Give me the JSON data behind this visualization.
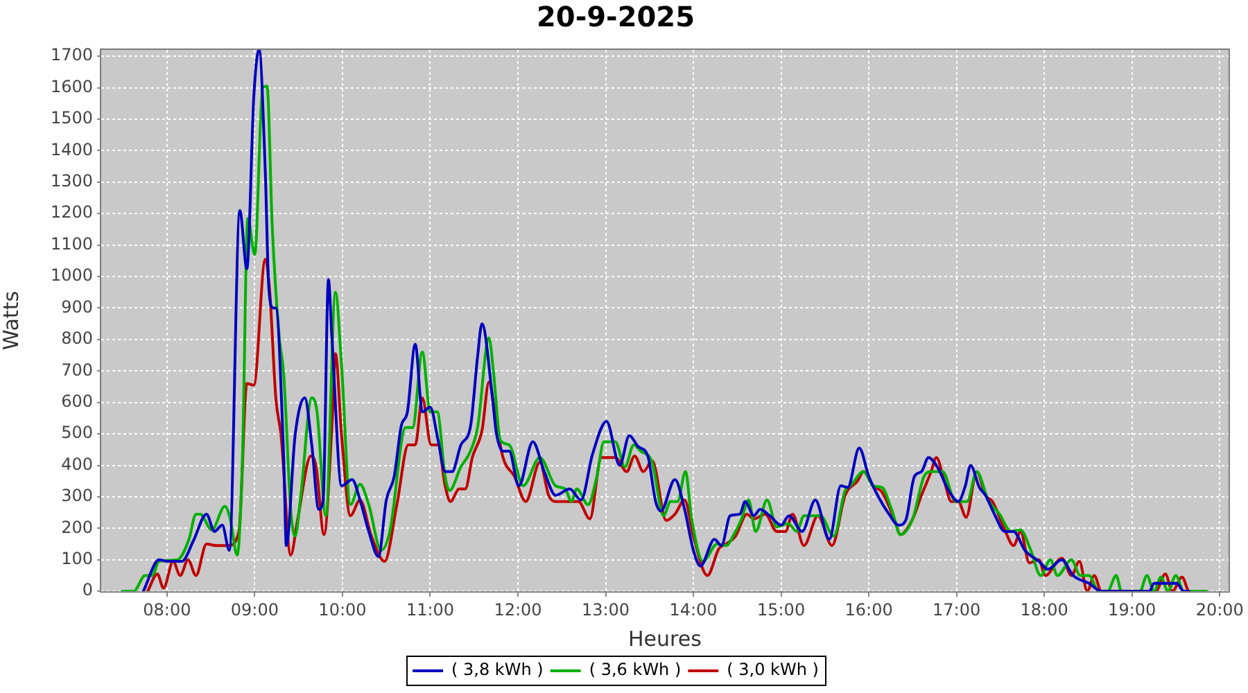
{
  "chart_data": {
    "type": "line",
    "title": "20-9-2025",
    "xlabel": "Heures",
    "ylabel": "Watts",
    "xlim": [
      7.25,
      20.1
    ],
    "ylim": [
      0,
      1720
    ],
    "xticks": [
      {
        "value": 8,
        "label": "08:00"
      },
      {
        "value": 9,
        "label": "09:00"
      },
      {
        "value": 10,
        "label": "10:00"
      },
      {
        "value": 11,
        "label": "11:00"
      },
      {
        "value": 12,
        "label": "12:00"
      },
      {
        "value": 13,
        "label": "13:00"
      },
      {
        "value": 14,
        "label": "14:00"
      },
      {
        "value": 15,
        "label": "15:00"
      },
      {
        "value": 16,
        "label": "16:00"
      },
      {
        "value": 17,
        "label": "17:00"
      },
      {
        "value": 18,
        "label": "18:00"
      },
      {
        "value": 19,
        "label": "19:00"
      },
      {
        "value": 20,
        "label": "20:00"
      }
    ],
    "yticks": [
      0,
      100,
      200,
      300,
      400,
      500,
      600,
      700,
      800,
      900,
      1000,
      1100,
      1200,
      1300,
      1400,
      1500,
      1600,
      1700
    ],
    "grid": true,
    "legend": "bottom",
    "line_style": "solid",
    "series": [
      {
        "name": "( 3,8 kWh )",
        "color": "#0000c0",
        "x": [
          7.73,
          7.91,
          8.0,
          8.17,
          8.3,
          8.45,
          8.54,
          8.63,
          8.71,
          8.83,
          8.91,
          8.99,
          9.05,
          9.12,
          9.16,
          9.21,
          9.24,
          9.33,
          9.36,
          9.46,
          9.57,
          9.65,
          9.73,
          9.78,
          9.84,
          9.88,
          9.99,
          10.11,
          10.2,
          10.3,
          10.41,
          10.5,
          10.59,
          10.67,
          10.74,
          10.83,
          10.91,
          11.0,
          11.09,
          11.17,
          11.25,
          11.35,
          11.46,
          11.54,
          11.59,
          11.71,
          11.75,
          11.83,
          11.9,
          12.01,
          12.17,
          12.3,
          12.43,
          12.59,
          12.72,
          12.85,
          13.01,
          13.16,
          13.27,
          13.37,
          13.48,
          13.57,
          13.63,
          13.79,
          13.9,
          14.0,
          14.08,
          14.24,
          14.32,
          14.42,
          14.53,
          14.59,
          14.69,
          14.76,
          14.87,
          15.0,
          15.09,
          15.24,
          15.39,
          15.55,
          15.68,
          15.76,
          15.89,
          16.0,
          16.1,
          16.23,
          16.34,
          16.42,
          16.52,
          16.6,
          16.68,
          16.78,
          16.92,
          17.02,
          17.1,
          17.16,
          17.26,
          17.33,
          17.44,
          17.55,
          17.65,
          17.78,
          17.94,
          18.04,
          18.2,
          18.33,
          18.51,
          18.65,
          19.2,
          19.25,
          19.51,
          19.59,
          19.65
        ],
        "values": [
          0,
          100,
          95,
          95,
          160,
          245,
          190,
          210,
          130,
          1210,
          1025,
          1575,
          1720,
          1335,
          965,
          900,
          900,
          425,
          145,
          495,
          615,
          465,
          260,
          290,
          990,
          805,
          335,
          355,
          290,
          190,
          110,
          290,
          365,
          525,
          570,
          785,
          570,
          585,
          480,
          380,
          380,
          465,
          525,
          745,
          850,
          615,
          510,
          445,
          445,
          335,
          475,
          380,
          305,
          325,
          290,
          435,
          540,
          400,
          495,
          460,
          430,
          285,
          255,
          355,
          260,
          130,
          80,
          165,
          145,
          240,
          245,
          285,
          240,
          260,
          240,
          210,
          240,
          190,
          290,
          165,
          335,
          330,
          455,
          365,
          305,
          245,
          210,
          225,
          365,
          380,
          425,
          395,
          315,
          285,
          335,
          400,
          330,
          305,
          240,
          190,
          190,
          130,
          95,
          70,
          100,
          50,
          25,
          0,
          0,
          25,
          25,
          0,
          0
        ]
      },
      {
        "name": "( 3,6 kWh )",
        "color": "#00b000",
        "x": [
          7.49,
          7.62,
          7.75,
          7.83,
          7.91,
          8.12,
          8.25,
          8.33,
          8.38,
          8.51,
          8.66,
          8.72,
          8.8,
          8.86,
          8.92,
          9.0,
          9.09,
          9.14,
          9.2,
          9.28,
          9.33,
          9.41,
          9.46,
          9.52,
          9.65,
          9.71,
          9.81,
          9.92,
          9.99,
          10.09,
          10.2,
          10.3,
          10.44,
          10.54,
          10.72,
          10.8,
          10.91,
          11.0,
          11.08,
          11.17,
          11.22,
          11.35,
          11.45,
          11.54,
          11.67,
          11.72,
          11.8,
          11.9,
          12.06,
          12.25,
          12.43,
          12.54,
          12.61,
          12.67,
          12.8,
          12.9,
          12.98,
          13.11,
          13.22,
          13.32,
          13.4,
          13.53,
          13.66,
          13.74,
          13.82,
          13.91,
          13.98,
          14.11,
          14.27,
          14.37,
          14.48,
          14.55,
          14.63,
          14.71,
          14.84,
          14.95,
          15.08,
          15.18,
          15.26,
          15.45,
          15.6,
          15.73,
          15.79,
          15.94,
          16.05,
          16.15,
          16.26,
          16.36,
          16.5,
          16.63,
          16.71,
          16.84,
          16.99,
          17.12,
          17.23,
          17.36,
          17.49,
          17.62,
          17.73,
          17.84,
          17.96,
          18.07,
          18.15,
          18.31,
          18.41,
          18.51,
          18.62,
          18.72,
          18.82,
          18.88,
          19.09,
          19.17,
          19.25,
          19.33,
          19.41,
          19.5,
          19.59,
          19.85
        ],
        "values": [
          0,
          0,
          50,
          50,
          95,
          100,
          165,
          245,
          245,
          195,
          270,
          230,
          115,
          425,
          1185,
          1070,
          1600,
          1605,
          1155,
          805,
          690,
          260,
          175,
          290,
          615,
          570,
          240,
          950,
          715,
          275,
          340,
          275,
          130,
          190,
          520,
          520,
          760,
          570,
          570,
          365,
          320,
          395,
          440,
          520,
          805,
          700,
          480,
          465,
          335,
          425,
          335,
          325,
          285,
          325,
          275,
          365,
          475,
          475,
          395,
          465,
          445,
          410,
          240,
          285,
          285,
          380,
          230,
          95,
          150,
          145,
          190,
          230,
          290,
          190,
          290,
          205,
          215,
          190,
          240,
          240,
          175,
          320,
          335,
          380,
          335,
          330,
          260,
          180,
          230,
          365,
          380,
          380,
          285,
          285,
          380,
          290,
          245,
          190,
          195,
          135,
          50,
          100,
          50,
          100,
          50,
          50,
          0,
          0,
          50,
          0,
          0,
          50,
          0,
          45,
          0,
          50,
          0,
          0
        ]
      },
      {
        "name": "( 3,0 kWh )",
        "color": "#c00000",
        "x": [
          7.78,
          7.89,
          7.96,
          8.07,
          8.15,
          8.24,
          8.33,
          8.45,
          8.57,
          8.7,
          8.82,
          8.91,
          8.99,
          9.12,
          9.17,
          9.24,
          9.3,
          9.41,
          9.49,
          9.64,
          9.7,
          9.79,
          9.88,
          9.92,
          9.99,
          10.09,
          10.2,
          10.33,
          10.48,
          10.62,
          10.75,
          10.83,
          10.91,
          11.01,
          11.09,
          11.17,
          11.23,
          11.33,
          11.4,
          11.48,
          11.59,
          11.67,
          11.75,
          11.83,
          11.96,
          12.09,
          12.25,
          12.35,
          12.43,
          12.69,
          12.82,
          12.95,
          13.11,
          13.24,
          13.33,
          13.43,
          13.53,
          13.69,
          13.79,
          13.9,
          14.0,
          14.16,
          14.29,
          14.37,
          14.48,
          14.61,
          14.69,
          14.82,
          14.95,
          15.05,
          15.13,
          15.26,
          15.42,
          15.58,
          15.73,
          15.87,
          15.94,
          16.05,
          16.15,
          16.29,
          16.36,
          16.5,
          16.6,
          16.71,
          16.77,
          16.86,
          16.94,
          17.02,
          17.11,
          17.23,
          17.33,
          17.41,
          17.55,
          17.65,
          17.73,
          17.83,
          17.94,
          18.01,
          18.2,
          18.31,
          18.4,
          18.49,
          18.57,
          18.65,
          19.27,
          19.38,
          19.46,
          19.57,
          19.64
        ],
        "values": [
          0,
          55,
          10,
          95,
          50,
          100,
          50,
          150,
          145,
          145,
          190,
          660,
          655,
          1055,
          955,
          615,
          495,
          115,
          230,
          430,
          395,
          180,
          525,
          755,
          495,
          240,
          290,
          175,
          95,
          275,
          465,
          465,
          615,
          465,
          465,
          335,
          285,
          325,
          325,
          425,
          510,
          665,
          540,
          425,
          365,
          285,
          410,
          305,
          285,
          285,
          230,
          425,
          425,
          380,
          430,
          380,
          415,
          225,
          245,
          290,
          175,
          50,
          135,
          150,
          175,
          245,
          230,
          245,
          190,
          190,
          245,
          145,
          240,
          145,
          305,
          350,
          380,
          335,
          315,
          230,
          180,
          230,
          305,
          380,
          425,
          350,
          285,
          285,
          235,
          380,
          305,
          285,
          195,
          145,
          190,
          90,
          100,
          50,
          105,
          50,
          95,
          0,
          50,
          0,
          0,
          55,
          0,
          45,
          0
        ]
      }
    ]
  }
}
